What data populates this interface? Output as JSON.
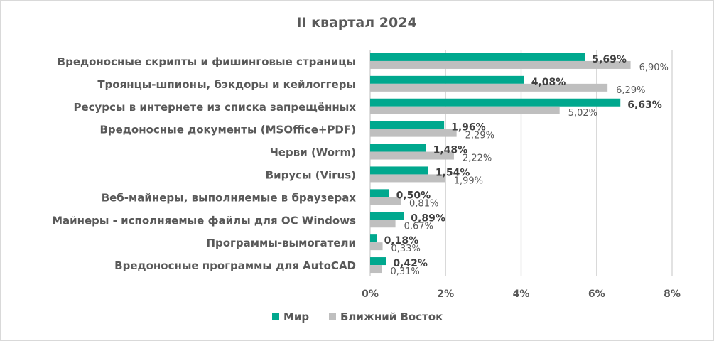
{
  "chart_data": {
    "type": "bar",
    "orientation": "horizontal",
    "title": "II квартал 2024",
    "categories": [
      "Вредоносные скрипты и фишинговые страницы",
      "Троянцы-шпионы, бэкдоры и кейлоггеры",
      "Ресурсы в интернете из списка запрещённых",
      "Вредоносные документы (MSOffice+PDF)",
      "Черви (Worm)",
      "Вирусы (Virus)",
      "Веб-майнеры, выполняемые в браузерах",
      "Майнеры - исполняемые файлы для ОС Windows",
      "Программы-вымогатели",
      "Вредоносные программы для AutoCAD"
    ],
    "series": [
      {
        "name": "Мир",
        "color": "#00a88e",
        "values": [
          5.69,
          4.08,
          6.63,
          1.96,
          1.48,
          1.54,
          0.5,
          0.89,
          0.18,
          0.42
        ],
        "labels": [
          "5,69%",
          "4,08%",
          "6,63%",
          "1,96%",
          "1,48%",
          "1,54%",
          "0,50%",
          "0,89%",
          "0,18%",
          "0,42%"
        ]
      },
      {
        "name": "Ближний Восток",
        "color": "#bfbfbf",
        "values": [
          6.9,
          6.29,
          5.02,
          2.29,
          2.22,
          1.99,
          0.81,
          0.67,
          0.33,
          0.31
        ],
        "labels": [
          "6,90%",
          "6,29%",
          "5,02%",
          "2,29%",
          "2,22%",
          "1,99%",
          "0,81%",
          "0,67%",
          "0,33%",
          "0,31%"
        ]
      }
    ],
    "xlim": [
      0,
      8
    ],
    "xticks": [
      0,
      2,
      4,
      6,
      8
    ],
    "xtick_labels": [
      "0%",
      "2%",
      "4%",
      "6%",
      "8%"
    ],
    "grid": true,
    "legend_position": "bottom"
  }
}
